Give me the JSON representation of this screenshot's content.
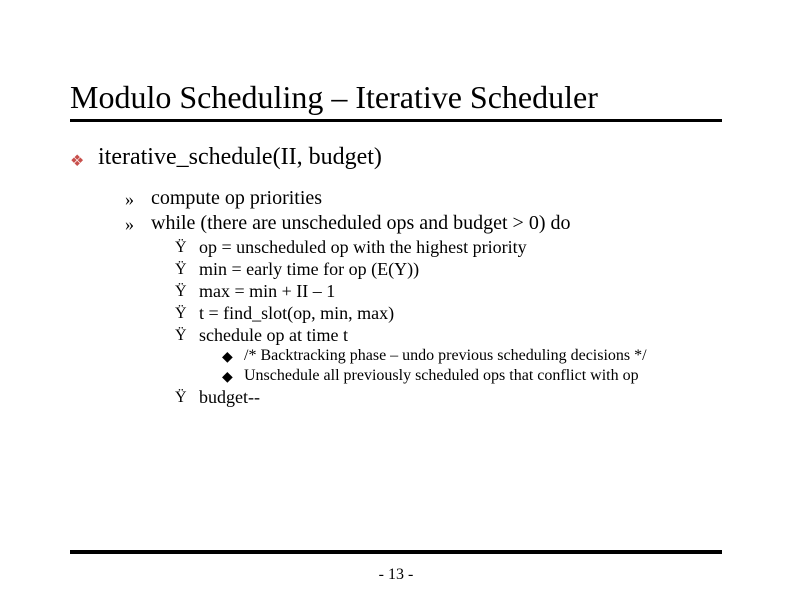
{
  "title": "Modulo Scheduling – Iterative Scheduler",
  "lvl1": {
    "bullet_glyph": "❖",
    "bullet_color": "#c8504c",
    "text": "iterative_schedule(II, budget)"
  },
  "lvl2": {
    "bullet_glyph": "»",
    "items": [
      "compute op priorities",
      "while (there are unscheduled ops and budget > 0) do"
    ]
  },
  "lvl3": {
    "bullet_glyph": "Ÿ",
    "group1": [
      "op = unscheduled op with the highest priority",
      "min = early time for op (E(Y))",
      "max = min + II – 1",
      "t = find_slot(op, min, max)",
      "schedule op at time t"
    ],
    "group2": [
      "budget--"
    ]
  },
  "lvl4": {
    "bullet_glyph": "◆",
    "items": [
      "/* Backtracking phase – undo previous scheduling decisions */",
      "Unschedule all previously scheduled ops that conflict with op"
    ]
  },
  "page_number": "- 13 -",
  "style": {
    "background_color": "#ffffff",
    "text_color": "#000000",
    "underline_color": "#000000",
    "title_fontsize": 32,
    "lvl1_fontsize": 24,
    "lvl2_fontsize": 20,
    "lvl3_fontsize": 18,
    "lvl4_fontsize": 16,
    "font_family": "Times New Roman"
  }
}
